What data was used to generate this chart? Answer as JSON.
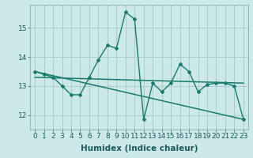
{
  "title": "",
  "xlabel": "Humidex (Indice chaleur)",
  "ylabel": "",
  "background_color": "#cce8e8",
  "line_color": "#1a7a6e",
  "grid_color": "#aacccc",
  "x_ticks": [
    0,
    1,
    2,
    3,
    4,
    5,
    6,
    7,
    8,
    9,
    10,
    11,
    12,
    13,
    14,
    15,
    16,
    17,
    18,
    19,
    20,
    21,
    22,
    23
  ],
  "y_ticks": [
    12,
    13,
    14,
    15
  ],
  "ylim": [
    11.5,
    15.8
  ],
  "xlim": [
    -0.5,
    23.5
  ],
  "series1": [
    13.5,
    13.4,
    13.3,
    13.0,
    12.7,
    12.7,
    13.3,
    13.9,
    14.4,
    14.3,
    15.55,
    15.3,
    11.85,
    13.1,
    12.8,
    13.1,
    13.75,
    13.5,
    12.8,
    13.05,
    13.1,
    13.1,
    13.0,
    11.85
  ],
  "series2_x": [
    0,
    23
  ],
  "series2_y": [
    13.5,
    11.85
  ],
  "series3_x": [
    0,
    23
  ],
  "series3_y": [
    13.3,
    13.1
  ],
  "font_size_xlabel": 7.5,
  "font_size_ticks": 6.5
}
